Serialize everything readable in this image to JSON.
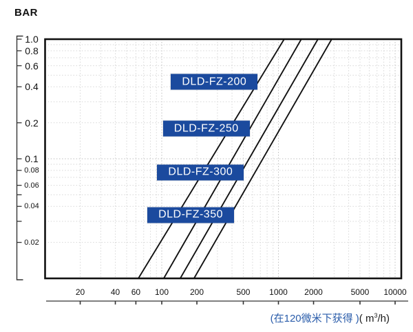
{
  "axis_title_y": "BAR",
  "caption": {
    "cn_part": "(在120微米下获得 )",
    "unit_pre": "( m",
    "unit_sup": "3",
    "unit_post": "/h)"
  },
  "colors": {
    "curve": "#111111",
    "plot_border": "#111111",
    "grid_major": "#bdbdbd",
    "grid_minor": "#d6d6d6",
    "box_bg": "#1b4a9e",
    "box_text": "#ffffff",
    "caption_cn": "#2a5caa",
    "caption_unit": "#1a1a1a",
    "axis_line": "#555555",
    "tick": "#333333"
  },
  "chart_data": {
    "type": "line",
    "x_scale": "log",
    "y_scale": "log",
    "x_range": [
      10,
      11300
    ],
    "y_range": [
      0.01,
      1.0
    ],
    "xlabel_unit": "m3/h",
    "ylabel_unit": "BAR",
    "grid": "log minor grid, dotted, on",
    "legend_position": "none",
    "x_ticks": [
      {
        "v": 20,
        "label": "20"
      },
      {
        "v": 40,
        "label": "40"
      },
      {
        "v": 60,
        "label": "60"
      },
      {
        "v": 100,
        "label": "100"
      },
      {
        "v": 200,
        "label": "200"
      },
      {
        "v": 500,
        "label": "500"
      },
      {
        "v": 1000,
        "label": "1000"
      },
      {
        "v": 2000,
        "label": "2000"
      },
      {
        "v": 5000,
        "label": "5000"
      },
      {
        "v": 10000,
        "label": "10000"
      }
    ],
    "y_ticks": [
      {
        "v": 1.0,
        "label": "1.0"
      },
      {
        "v": 0.8,
        "label": "0.8"
      },
      {
        "v": 0.6,
        "label": "0.6"
      },
      {
        "v": 0.4,
        "label": "0.4"
      },
      {
        "v": 0.2,
        "label": "0.2"
      },
      {
        "v": 0.1,
        "label": "0.1"
      },
      {
        "v": 0.08,
        "label": "0.08"
      },
      {
        "v": 0.06,
        "label": "0.06"
      },
      {
        "v": 0.05,
        "label": ""
      },
      {
        "v": 0.04,
        "label": "0.04"
      },
      {
        "v": 0.03,
        "label": ""
      },
      {
        "v": 0.02,
        "label": "0.02"
      }
    ],
    "series": [
      {
        "name": "DLD-FZ-200",
        "points": [
          [
            63,
            0.01
          ],
          [
            1120,
            1.0
          ]
        ]
      },
      {
        "name": "DLD-FZ-250",
        "points": [
          [
            104,
            0.01
          ],
          [
            1570,
            1.0
          ]
        ]
      },
      {
        "name": "DLD-FZ-300",
        "points": [
          [
            144,
            0.01
          ],
          [
            2180,
            1.0
          ]
        ]
      },
      {
        "name": "DLD-FZ-350",
        "points": [
          [
            189,
            0.01
          ],
          [
            2860,
            1.0
          ]
        ]
      }
    ],
    "annotations": [
      {
        "label": "DLD-FZ-200",
        "flow": 282,
        "bar": 0.44
      },
      {
        "label": "DLD-FZ-250",
        "flow": 241,
        "bar": 0.179
      },
      {
        "label": "DLD-FZ-300",
        "flow": 215,
        "bar": 0.077
      },
      {
        "label": "DLD-FZ-350",
        "flow": 177,
        "bar": 0.034
      }
    ]
  }
}
